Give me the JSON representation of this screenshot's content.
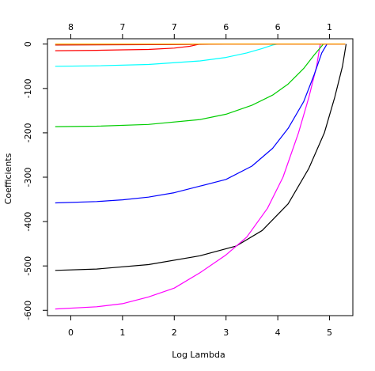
{
  "chart_data": {
    "type": "line",
    "xlabel": "Log Lambda",
    "ylabel": "Coefficients",
    "xlim": [
      -0.45,
      5.45
    ],
    "ylim": [
      -612,
      12
    ],
    "x_ticks": [
      0,
      1,
      2,
      3,
      4,
      5
    ],
    "y_ticks": [
      0,
      -100,
      -200,
      -300,
      -400,
      -500,
      -600
    ],
    "top_axis": {
      "positions": [
        0,
        1,
        2,
        3,
        4,
        5
      ],
      "labels": [
        "8",
        "7",
        "7",
        "6",
        "6",
        "1"
      ]
    },
    "series": [
      {
        "color": "#000000",
        "points": [
          [
            -0.3,
            -510
          ],
          [
            0.5,
            -507
          ],
          [
            1.5,
            -497
          ],
          [
            2.5,
            -477
          ],
          [
            3.2,
            -455
          ],
          [
            3.7,
            -420
          ],
          [
            4.2,
            -360
          ],
          [
            4.6,
            -280
          ],
          [
            4.9,
            -200
          ],
          [
            5.1,
            -120
          ],
          [
            5.25,
            -50
          ],
          [
            5.32,
            0
          ]
        ]
      },
      {
        "color": "#FF00FF",
        "points": [
          [
            -0.3,
            -597
          ],
          [
            0.5,
            -592
          ],
          [
            1.0,
            -585
          ],
          [
            1.5,
            -570
          ],
          [
            2.0,
            -550
          ],
          [
            2.5,
            -515
          ],
          [
            3.0,
            -475
          ],
          [
            3.4,
            -435
          ],
          [
            3.8,
            -370
          ],
          [
            4.1,
            -300
          ],
          [
            4.4,
            -200
          ],
          [
            4.6,
            -120
          ],
          [
            4.75,
            -50
          ],
          [
            4.82,
            0
          ]
        ]
      },
      {
        "color": "#0000FF",
        "points": [
          [
            -0.3,
            -358
          ],
          [
            0.5,
            -355
          ],
          [
            1.0,
            -351
          ],
          [
            1.5,
            -345
          ],
          [
            2.0,
            -335
          ],
          [
            2.5,
            -320
          ],
          [
            3.0,
            -305
          ],
          [
            3.5,
            -275
          ],
          [
            3.9,
            -235
          ],
          [
            4.2,
            -190
          ],
          [
            4.5,
            -130
          ],
          [
            4.7,
            -70
          ],
          [
            4.85,
            -20
          ],
          [
            4.95,
            0
          ]
        ]
      },
      {
        "color": "#00CD00",
        "points": [
          [
            -0.3,
            -186
          ],
          [
            0.5,
            -185
          ],
          [
            1.5,
            -181
          ],
          [
            2.5,
            -170
          ],
          [
            3.0,
            -158
          ],
          [
            3.5,
            -138
          ],
          [
            3.9,
            -115
          ],
          [
            4.2,
            -90
          ],
          [
            4.5,
            -55
          ],
          [
            4.7,
            -25
          ],
          [
            4.88,
            0
          ]
        ]
      },
      {
        "color": "#00FFFF",
        "points": [
          [
            -0.3,
            -50
          ],
          [
            0.5,
            -49
          ],
          [
            1.5,
            -46
          ],
          [
            2.5,
            -38
          ],
          [
            3.0,
            -30
          ],
          [
            3.4,
            -20
          ],
          [
            3.7,
            -10
          ],
          [
            3.9,
            -2
          ],
          [
            4.0,
            0
          ]
        ]
      },
      {
        "color": "#FF0000",
        "points": [
          [
            -0.3,
            -15
          ],
          [
            0.5,
            -14
          ],
          [
            1.0,
            -13
          ],
          [
            1.5,
            -12
          ],
          [
            2.0,
            -9
          ],
          [
            2.3,
            -5
          ],
          [
            2.45,
            -1
          ],
          [
            2.5,
            0
          ],
          [
            5.3,
            0
          ]
        ]
      },
      {
        "color": "#CC0000",
        "points": [
          [
            -0.3,
            -2
          ],
          [
            2.0,
            -1
          ],
          [
            3.0,
            0
          ],
          [
            5.3,
            0
          ]
        ]
      },
      {
        "color": "#FFB000",
        "points": [
          [
            -0.3,
            0
          ],
          [
            5.3,
            0
          ]
        ]
      }
    ]
  }
}
